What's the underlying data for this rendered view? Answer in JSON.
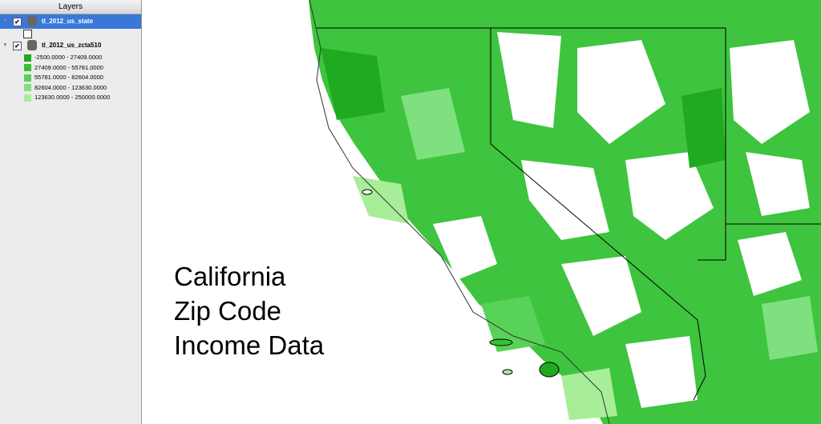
{
  "panel": {
    "title": "Layers"
  },
  "layers": [
    {
      "name": "tl_2012_us_state"
    },
    {
      "name": "tl_2012_us_zcta510",
      "legend": [
        {
          "label": "-2500.0000 - 27409.0000",
          "color": "#1faa1f"
        },
        {
          "label": "27409.0000 - 55781.0000",
          "color": "#36c136"
        },
        {
          "label": "55781.0000 - 82604.0000",
          "color": "#58d258"
        },
        {
          "label": "82604.0000 - 123630.0000",
          "color": "#7fe07f"
        },
        {
          "label": "123630.0000 - 250000.0000",
          "color": "#a8ee98"
        }
      ]
    }
  ],
  "map": {
    "annotation": [
      "California",
      "Zip Code",
      "Income Data"
    ]
  }
}
